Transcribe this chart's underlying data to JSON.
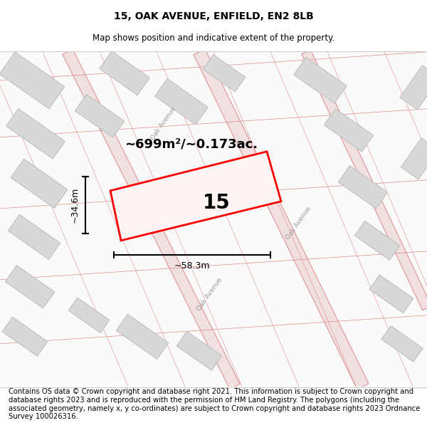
{
  "title": "15, OAK AVENUE, ENFIELD, EN2 8LB",
  "subtitle": "Map shows position and indicative extent of the property.",
  "footer": "Contains OS data © Crown copyright and database right 2021. This information is subject to Crown copyright and database rights 2023 and is reproduced with the permission of HM Land Registry. The polygons (including the associated geometry, namely x, y co-ordinates) are subject to Crown copyright and database rights 2023 Ordnance Survey 100026316.",
  "area_label": "~699m²/~0.173ac.",
  "width_label": "~58.3m",
  "height_label": "~34.6m",
  "plot_number": "15",
  "highlight_color": "#ff0000",
  "map_bg": "#f9f9f9",
  "building_fill": "#d8d8d8",
  "building_edge": "#c0c0c0",
  "road_line_color": "#e08888",
  "road_fill_color": "#f0e0e0",
  "road_text_color": "#999999",
  "title_fontsize": 10,
  "subtitle_fontsize": 8.5,
  "footer_fontsize": 7.2,
  "area_fontsize": 13,
  "dim_fontsize": 9,
  "plot_num_fontsize": 20
}
